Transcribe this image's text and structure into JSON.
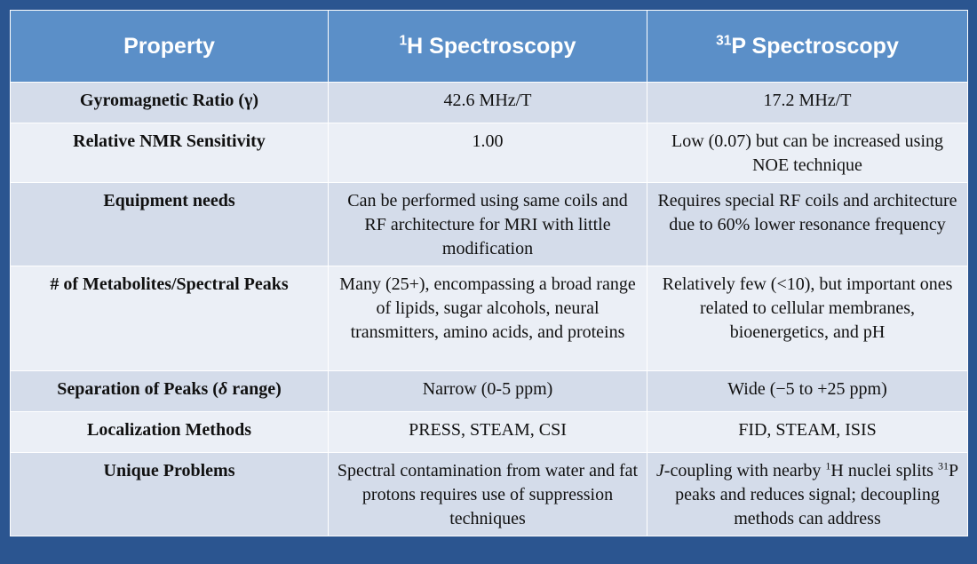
{
  "header": {
    "property": "Property",
    "h_sup": "1",
    "h_label": "H Spectroscopy",
    "p_sup": "31",
    "p_label": "P Spectroscopy"
  },
  "rows": [
    {
      "property": "Gyromagnetic Ratio (γ)",
      "h": "42.6 MHz/T",
      "p": "17.2 MHz/T"
    },
    {
      "property": "Relative NMR Sensitivity",
      "h": "1.00",
      "p": "Low (0.07) but can be increased using NOE technique"
    },
    {
      "property": "Equipment needs",
      "h": "Can be performed using same coils and RF architecture for MRI with little modification",
      "p": "Requires special RF coils and architecture due to 60% lower resonance frequency"
    },
    {
      "property": "# of Metabolites/Spectral Peaks",
      "h": "Many (25+), encompassing a broad range of lipids, sugar alcohols, neural transmitters, amino acids, and proteins",
      "p": "Relatively few (<10), but important ones related to cellular membranes, bioenergetics, and pH"
    },
    {
      "property_prefix": "Separation of Peaks (",
      "property_delta": "δ",
      "property_suffix": " range)",
      "h": "Narrow (0-5 ppm)",
      "p": "Wide (−5 to +25 ppm)"
    },
    {
      "property": "Localization Methods",
      "h": "PRESS, STEAM, CSI",
      "p": "FID, STEAM, ISIS"
    },
    {
      "property": "Unique Problems",
      "h": "Spectral contamination from water and fat protons requires use of suppression techniques",
      "p_j": "J",
      "p_part1": "-coupling with nearby ",
      "p_sup1": "1",
      "p_part2": "H nuclei splits ",
      "p_sup2": "31",
      "p_part3": "P peaks and reduces signal; decoupling methods can address"
    }
  ]
}
